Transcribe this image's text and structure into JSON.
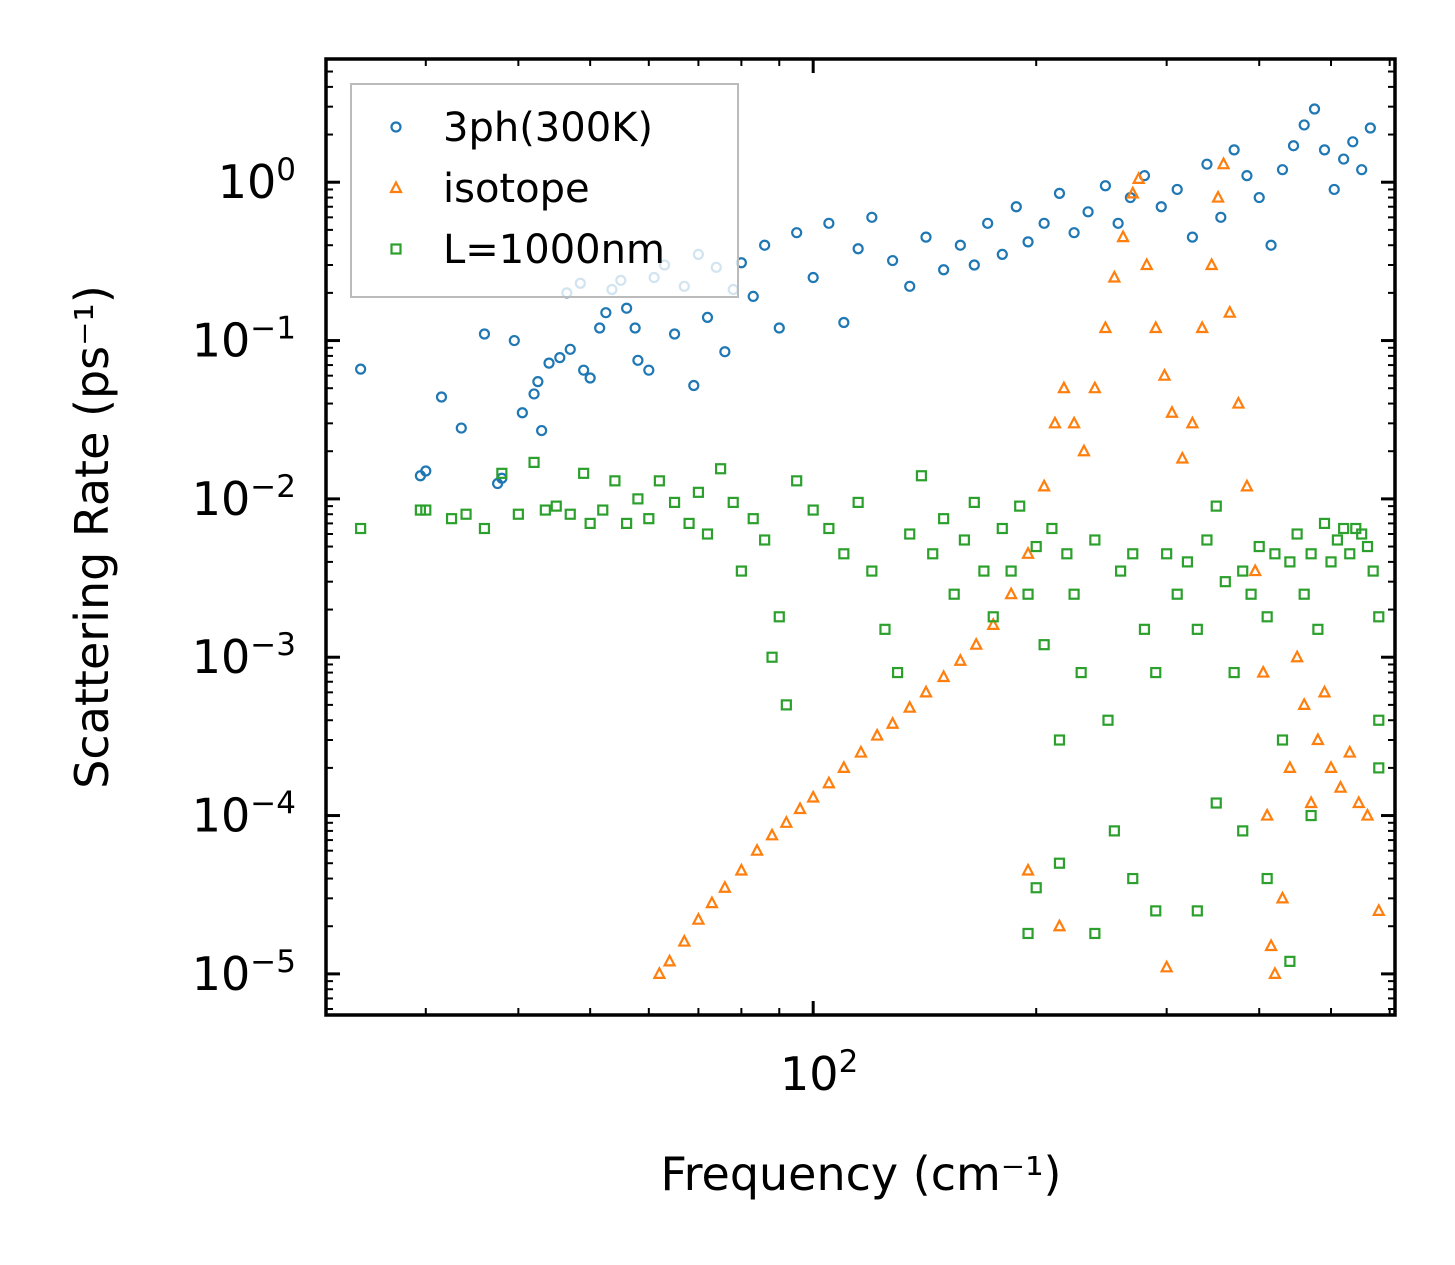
{
  "chart_data": {
    "type": "scatter",
    "xscale": "log",
    "yscale": "log",
    "xlabel": "Frequency (cm⁻¹)",
    "ylabel": "Scattering Rate (ps⁻¹)",
    "xlim": [
      22,
      610
    ],
    "ylim": [
      5.5e-06,
      6.0
    ],
    "xtick_labels": [
      {
        "value": 100,
        "base": "10",
        "exp": "2"
      }
    ],
    "ytick_labels": [
      {
        "value": 1,
        "base": "10",
        "exp": "0"
      },
      {
        "value": 0.1,
        "base": "10",
        "exp": "−1"
      },
      {
        "value": 0.01,
        "base": "10",
        "exp": "−2"
      },
      {
        "value": 0.001,
        "base": "10",
        "exp": "−3"
      },
      {
        "value": 0.0001,
        "base": "10",
        "exp": "−4"
      },
      {
        "value": 1e-05,
        "base": "10",
        "exp": "−5"
      }
    ],
    "legend_position": "upper-left",
    "series": [
      {
        "name": "3ph(300K)",
        "marker": "circle",
        "color": "#1f77b4",
        "points": [
          [
            24.5,
            0.066
          ],
          [
            31.5,
            0.044
          ],
          [
            33.5,
            0.028
          ],
          [
            29.5,
            0.014
          ],
          [
            30.0,
            0.015
          ],
          [
            36.0,
            0.11
          ],
          [
            37.5,
            0.0125
          ],
          [
            38.0,
            0.0135
          ],
          [
            39.5,
            0.1
          ],
          [
            40.5,
            0.035
          ],
          [
            42.0,
            0.046
          ],
          [
            42.5,
            0.055
          ],
          [
            43.0,
            0.027
          ],
          [
            44.0,
            0.072
          ],
          [
            45.5,
            0.078
          ],
          [
            46.5,
            0.2
          ],
          [
            47.0,
            0.088
          ],
          [
            48.5,
            0.23
          ],
          [
            49.0,
            0.065
          ],
          [
            50.0,
            0.058
          ],
          [
            51.5,
            0.12
          ],
          [
            52.5,
            0.15
          ],
          [
            53.5,
            0.21
          ],
          [
            55.0,
            0.24
          ],
          [
            56.0,
            0.16
          ],
          [
            57.5,
            0.12
          ],
          [
            58.0,
            0.075
          ],
          [
            60.0,
            0.065
          ],
          [
            61.0,
            0.25
          ],
          [
            63.0,
            0.3
          ],
          [
            65.0,
            0.11
          ],
          [
            67.0,
            0.22
          ],
          [
            69.0,
            0.052
          ],
          [
            70.0,
            0.35
          ],
          [
            72.0,
            0.14
          ],
          [
            74.0,
            0.29
          ],
          [
            76.0,
            0.085
          ],
          [
            78.0,
            0.21
          ],
          [
            80.0,
            0.31
          ],
          [
            83.0,
            0.19
          ],
          [
            86.0,
            0.4
          ],
          [
            90.0,
            0.12
          ],
          [
            95.0,
            0.48
          ],
          [
            100.0,
            0.25
          ],
          [
            105.0,
            0.55
          ],
          [
            110.0,
            0.13
          ],
          [
            115.0,
            0.38
          ],
          [
            120.0,
            0.6
          ],
          [
            128.0,
            0.32
          ],
          [
            135.0,
            0.22
          ],
          [
            142.0,
            0.45
          ],
          [
            150.0,
            0.28
          ],
          [
            158.0,
            0.4
          ],
          [
            165.0,
            0.3
          ],
          [
            172.0,
            0.55
          ],
          [
            180.0,
            0.35
          ],
          [
            188.0,
            0.7
          ],
          [
            195.0,
            0.42
          ],
          [
            205.0,
            0.55
          ],
          [
            215.0,
            0.85
          ],
          [
            225.0,
            0.48
          ],
          [
            235.0,
            0.65
          ],
          [
            248.0,
            0.95
          ],
          [
            258.0,
            0.55
          ],
          [
            268.0,
            0.8
          ],
          [
            280.0,
            1.1
          ],
          [
            295.0,
            0.7
          ],
          [
            310.0,
            0.9
          ],
          [
            325.0,
            0.45
          ],
          [
            340.0,
            1.3
          ],
          [
            355.0,
            0.6
          ],
          [
            370.0,
            1.6
          ],
          [
            385.0,
            1.1
          ],
          [
            400.0,
            0.8
          ],
          [
            415.0,
            0.4
          ],
          [
            430.0,
            1.2
          ],
          [
            445.0,
            1.7
          ],
          [
            460.0,
            2.3
          ],
          [
            475.0,
            2.9
          ],
          [
            490.0,
            1.6
          ],
          [
            505.0,
            0.9
          ],
          [
            520.0,
            1.4
          ],
          [
            535.0,
            1.8
          ],
          [
            550.0,
            1.2
          ],
          [
            565.0,
            2.2
          ]
        ]
      },
      {
        "name": "isotope",
        "marker": "triangle",
        "color": "#ff7f0e",
        "points": [
          [
            62.0,
            1e-05
          ],
          [
            64.0,
            1.2e-05
          ],
          [
            67.0,
            1.6e-05
          ],
          [
            70.0,
            2.2e-05
          ],
          [
            73.0,
            2.8e-05
          ],
          [
            76.0,
            3.5e-05
          ],
          [
            80.0,
            4.5e-05
          ],
          [
            84.0,
            6e-05
          ],
          [
            88.0,
            7.5e-05
          ],
          [
            92.0,
            9e-05
          ],
          [
            96.0,
            0.00011
          ],
          [
            100.0,
            0.00013
          ],
          [
            105.0,
            0.00016
          ],
          [
            110.0,
            0.0002
          ],
          [
            116.0,
            0.00025
          ],
          [
            122.0,
            0.00032
          ],
          [
            128.0,
            0.00038
          ],
          [
            135.0,
            0.00048
          ],
          [
            142.0,
            0.0006
          ],
          [
            150.0,
            0.00075
          ],
          [
            158.0,
            0.00095
          ],
          [
            166.0,
            0.0012
          ],
          [
            175.0,
            0.0016
          ],
          [
            185.0,
            0.0025
          ],
          [
            195.0,
            0.0045
          ],
          [
            205.0,
            0.012
          ],
          [
            212.0,
            0.03
          ],
          [
            218.0,
            0.05
          ],
          [
            225.0,
            0.03
          ],
          [
            232.0,
            0.02
          ],
          [
            240.0,
            0.05
          ],
          [
            248.0,
            0.12
          ],
          [
            255.0,
            0.25
          ],
          [
            262.0,
            0.45
          ],
          [
            270.0,
            0.85
          ],
          [
            275.0,
            1.05
          ],
          [
            282.0,
            0.3
          ],
          [
            290.0,
            0.12
          ],
          [
            298.0,
            0.06
          ],
          [
            305.0,
            0.035
          ],
          [
            315.0,
            0.018
          ],
          [
            325.0,
            0.03
          ],
          [
            335.0,
            0.12
          ],
          [
            345.0,
            0.3
          ],
          [
            352.0,
            0.8
          ],
          [
            358.0,
            1.3
          ],
          [
            365.0,
            0.15
          ],
          [
            375.0,
            0.04
          ],
          [
            385.0,
            0.012
          ],
          [
            395.0,
            0.0035
          ],
          [
            405.0,
            0.0008
          ],
          [
            410.0,
            0.0001
          ],
          [
            415.0,
            1.5e-05
          ],
          [
            420.0,
            1e-05
          ],
          [
            430.0,
            3e-05
          ],
          [
            440.0,
            0.0002
          ],
          [
            450.0,
            0.001
          ],
          [
            460.0,
            0.0005
          ],
          [
            470.0,
            0.00012
          ],
          [
            480.0,
            0.0003
          ],
          [
            490.0,
            0.0006
          ],
          [
            500.0,
            0.0002
          ],
          [
            515.0,
            0.00015
          ],
          [
            530.0,
            0.00025
          ],
          [
            545.0,
            0.00012
          ],
          [
            560.0,
            0.0001
          ],
          [
            580.0,
            2.5e-05
          ],
          [
            300.0,
            1.1e-05
          ],
          [
            215.0,
            2e-05
          ],
          [
            195.0,
            4.5e-05
          ]
        ]
      },
      {
        "name": "L=1000nm",
        "marker": "square",
        "color": "#2ca02c",
        "points": [
          [
            24.5,
            0.0065
          ],
          [
            29.5,
            0.0085
          ],
          [
            30.0,
            0.0085
          ],
          [
            32.5,
            0.0075
          ],
          [
            34.0,
            0.008
          ],
          [
            36.0,
            0.0065
          ],
          [
            38.0,
            0.0145
          ],
          [
            40.0,
            0.008
          ],
          [
            42.0,
            0.017
          ],
          [
            43.5,
            0.0085
          ],
          [
            45.0,
            0.009
          ],
          [
            47.0,
            0.008
          ],
          [
            49.0,
            0.0145
          ],
          [
            50.0,
            0.007
          ],
          [
            52.0,
            0.0085
          ],
          [
            54.0,
            0.013
          ],
          [
            56.0,
            0.007
          ],
          [
            58.0,
            0.01
          ],
          [
            60.0,
            0.0075
          ],
          [
            62.0,
            0.013
          ],
          [
            65.0,
            0.0095
          ],
          [
            68.0,
            0.007
          ],
          [
            70.0,
            0.011
          ],
          [
            72.0,
            0.006
          ],
          [
            75.0,
            0.0155
          ],
          [
            78.0,
            0.0095
          ],
          [
            80.0,
            0.0035
          ],
          [
            83.0,
            0.0075
          ],
          [
            86.0,
            0.0055
          ],
          [
            88.0,
            0.001
          ],
          [
            90.0,
            0.0018
          ],
          [
            92.0,
            0.0005
          ],
          [
            95.0,
            0.013
          ],
          [
            100.0,
            0.0085
          ],
          [
            105.0,
            0.0065
          ],
          [
            110.0,
            0.0045
          ],
          [
            115.0,
            0.0095
          ],
          [
            120.0,
            0.0035
          ],
          [
            125.0,
            0.0015
          ],
          [
            130.0,
            0.0008
          ],
          [
            135.0,
            0.006
          ],
          [
            140.0,
            0.014
          ],
          [
            145.0,
            0.0045
          ],
          [
            150.0,
            0.0075
          ],
          [
            155.0,
            0.0025
          ],
          [
            160.0,
            0.0055
          ],
          [
            165.0,
            0.0095
          ],
          [
            170.0,
            0.0035
          ],
          [
            175.0,
            0.0018
          ],
          [
            180.0,
            0.0065
          ],
          [
            185.0,
            0.0035
          ],
          [
            190.0,
            0.009
          ],
          [
            195.0,
            0.0025
          ],
          [
            200.0,
            0.005
          ],
          [
            205.0,
            0.0012
          ],
          [
            210.0,
            0.0065
          ],
          [
            215.0,
            0.0003
          ],
          [
            220.0,
            0.0045
          ],
          [
            225.0,
            0.0025
          ],
          [
            230.0,
            0.0008
          ],
          [
            240.0,
            0.0055
          ],
          [
            250.0,
            0.0004
          ],
          [
            260.0,
            0.0035
          ],
          [
            270.0,
            0.0045
          ],
          [
            280.0,
            0.0015
          ],
          [
            290.0,
            0.0008
          ],
          [
            300.0,
            0.0045
          ],
          [
            310.0,
            0.0025
          ],
          [
            320.0,
            0.004
          ],
          [
            330.0,
            0.0015
          ],
          [
            340.0,
            0.0055
          ],
          [
            350.0,
            0.009
          ],
          [
            360.0,
            0.003
          ],
          [
            370.0,
            0.0008
          ],
          [
            380.0,
            0.0035
          ],
          [
            390.0,
            0.0025
          ],
          [
            400.0,
            0.005
          ],
          [
            410.0,
            0.0018
          ],
          [
            420.0,
            0.0045
          ],
          [
            430.0,
            0.0003
          ],
          [
            440.0,
            0.004
          ],
          [
            450.0,
            0.006
          ],
          [
            460.0,
            0.0025
          ],
          [
            470.0,
            0.0045
          ],
          [
            480.0,
            0.0015
          ],
          [
            490.0,
            0.007
          ],
          [
            500.0,
            0.004
          ],
          [
            510.0,
            0.0055
          ],
          [
            520.0,
            0.0065
          ],
          [
            530.0,
            0.0045
          ],
          [
            540.0,
            0.0065
          ],
          [
            550.0,
            0.006
          ],
          [
            560.0,
            0.005
          ],
          [
            570.0,
            0.0035
          ],
          [
            580.0,
            0.0018
          ],
          [
            580.0,
            0.0004
          ],
          [
            580.0,
            0.0002
          ],
          [
            290.0,
            2.5e-05
          ],
          [
            270.0,
            4e-05
          ],
          [
            255.0,
            8e-05
          ],
          [
            240.0,
            1.8e-05
          ],
          [
            215.0,
            5e-05
          ],
          [
            200.0,
            3.5e-05
          ],
          [
            195.0,
            1.8e-05
          ],
          [
            330.0,
            2.5e-05
          ],
          [
            440.0,
            1.2e-05
          ],
          [
            470.0,
            0.0001
          ],
          [
            380.0,
            8e-05
          ],
          [
            350.0,
            0.00012
          ],
          [
            410.0,
            4e-05
          ]
        ]
      }
    ]
  }
}
